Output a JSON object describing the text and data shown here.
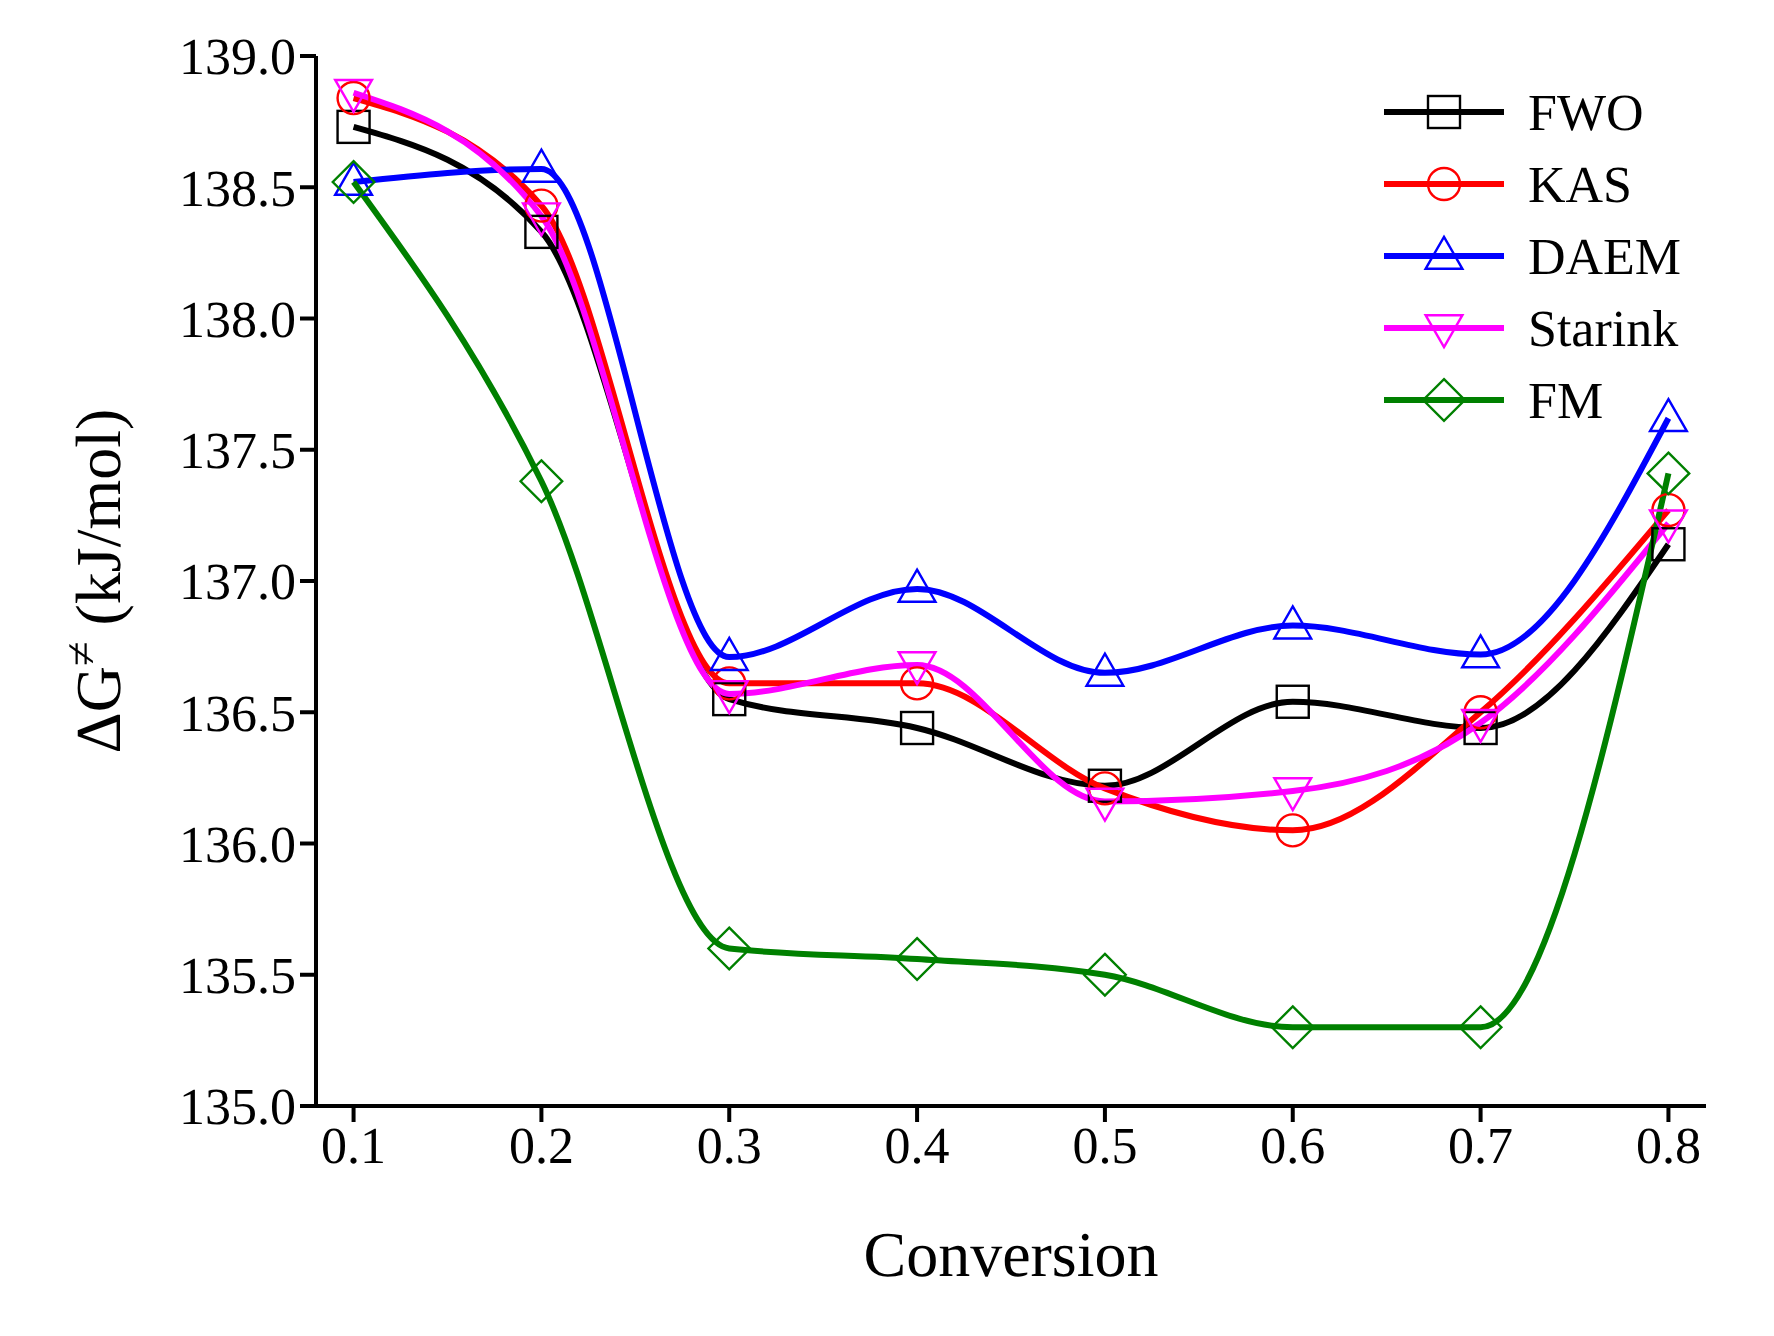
{
  "chart_data": {
    "type": "line",
    "xlabel": "Conversion",
    "ylabel": "ΔG$^{≠}$ (kJ/mol)",
    "x": [
      0.1,
      0.2,
      0.3,
      0.4,
      0.5,
      0.6,
      0.7,
      0.8
    ],
    "xlim": [
      0.08,
      0.82
    ],
    "xticks": [
      0.1,
      0.2,
      0.3,
      0.4,
      0.5,
      0.6,
      0.7,
      0.8
    ],
    "ylim": [
      135,
      139
    ],
    "yticks": [
      {
        "value": 135,
        "label": "135.0"
      },
      {
        "value": 135.5,
        "label": "135.5"
      },
      {
        "value": 136,
        "label": "136.0"
      },
      {
        "value": 136.5,
        "label": "136.5"
      },
      {
        "value": 137,
        "label": "137.0"
      },
      {
        "value": 137.5,
        "label": "137.5"
      },
      {
        "value": 138,
        "label": "138.0"
      },
      {
        "value": 138.5,
        "label": "138.5"
      },
      {
        "value": 139,
        "label": "139.0"
      }
    ],
    "grid": false,
    "legend": "top right",
    "line_style": "solid",
    "series": [
      {
        "name": "FWO",
        "color": "#000000",
        "marker": "square",
        "values": [
          138.73,
          138.33,
          136.55,
          136.44,
          136.22,
          136.54,
          136.44,
          137.14
        ]
      },
      {
        "name": "KAS",
        "color": "#ff0000",
        "marker": "circle",
        "values": [
          138.84,
          138.43,
          136.61,
          136.61,
          136.21,
          136.05,
          136.5,
          137.27
        ]
      },
      {
        "name": "DAEM",
        "color": "#0000ff",
        "marker": "triangle",
        "values": [
          138.52,
          138.57,
          136.71,
          136.97,
          136.65,
          136.83,
          136.72,
          137.62
        ]
      },
      {
        "name": "Starink",
        "color": "#ff00ff",
        "marker": "triangle-down",
        "values": [
          138.86,
          138.39,
          136.57,
          136.68,
          136.16,
          136.2,
          136.46,
          137.22
        ]
      },
      {
        "name": "FM",
        "color": "#008000",
        "marker": "diamond",
        "values": [
          138.52,
          137.38,
          135.6,
          135.56,
          135.5,
          135.3,
          135.3,
          137.41
        ]
      }
    ]
  }
}
